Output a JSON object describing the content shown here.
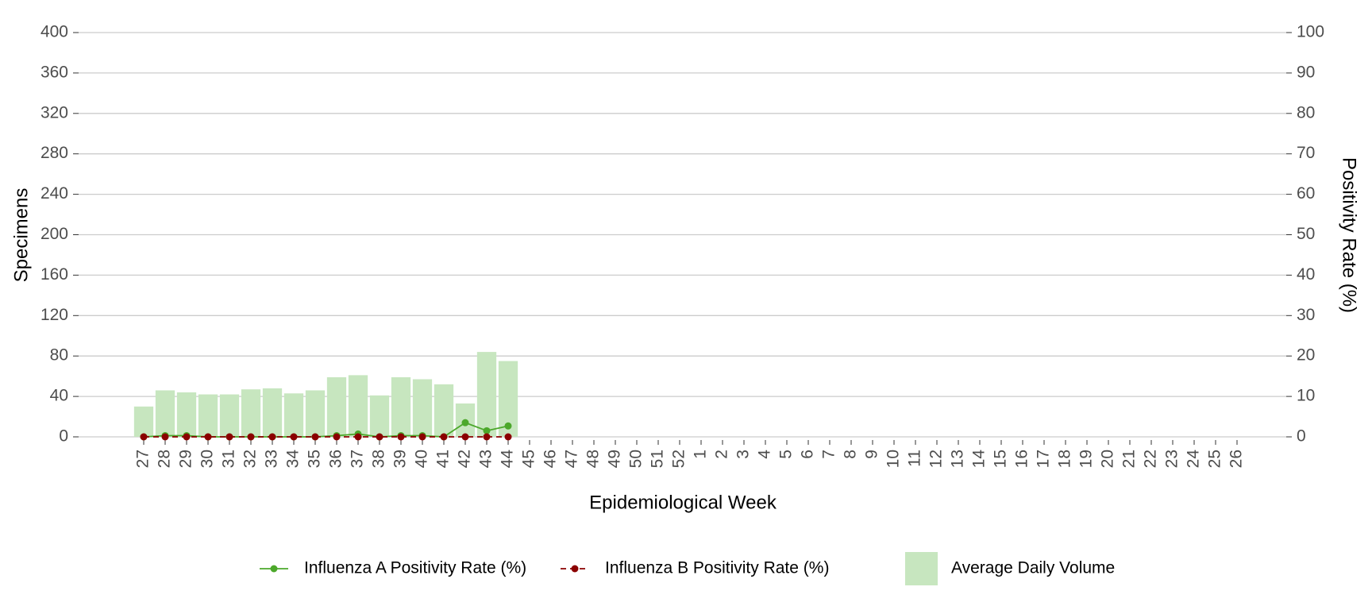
{
  "chart_data": {
    "type": "bar-line",
    "x_label": "Epidemiological Week",
    "y_label": "Specimens",
    "y2_label": "Positivity Rate (%)",
    "categories": [
      "27",
      "28",
      "29",
      "30",
      "31",
      "32",
      "33",
      "34",
      "35",
      "36",
      "37",
      "38",
      "39",
      "40",
      "41",
      "42",
      "43",
      "44",
      "45",
      "46",
      "47",
      "48",
      "49",
      "50",
      "51",
      "52",
      "1",
      "2",
      "3",
      "4",
      "5",
      "6",
      "7",
      "8",
      "9",
      "10",
      "11",
      "12",
      "13",
      "14",
      "15",
      "16",
      "17",
      "18",
      "19",
      "20",
      "21",
      "22",
      "23",
      "24",
      "25",
      "26"
    ],
    "series": [
      {
        "name": "Average Daily Volume",
        "type": "bar",
        "axis": "y",
        "color": "#c7e6bf",
        "values": [
          30,
          46,
          44,
          42,
          42,
          47,
          48,
          43,
          46,
          59,
          61,
          41,
          59,
          57,
          52,
          33,
          84,
          75,
          null,
          null,
          null,
          null,
          null,
          null,
          null,
          null,
          null,
          null,
          null,
          null,
          null,
          null,
          null,
          null,
          null,
          null,
          null,
          null,
          null,
          null,
          null,
          null,
          null,
          null,
          null,
          null,
          null,
          null,
          null,
          null,
          null,
          null
        ]
      },
      {
        "name": "Influenza A Positivity Rate (%)",
        "type": "line",
        "axis": "y2",
        "color": "#4ca82b",
        "dash": false,
        "values": [
          0,
          0.3,
          0.3,
          0,
          0,
          0,
          0,
          0,
          0,
          0.3,
          0.7,
          0,
          0.3,
          0.3,
          0,
          3.5,
          1.5,
          2.7,
          null,
          null,
          null,
          null,
          null,
          null,
          null,
          null,
          null,
          null,
          null,
          null,
          null,
          null,
          null,
          null,
          null,
          null,
          null,
          null,
          null,
          null,
          null,
          null,
          null,
          null,
          null,
          null,
          null,
          null,
          null,
          null,
          null,
          null
        ]
      },
      {
        "name": "Influenza B Positivity Rate (%)",
        "type": "line",
        "axis": "y2",
        "color": "#8b0000",
        "dash": true,
        "values": [
          0,
          0,
          0,
          0,
          0,
          0,
          0,
          0,
          0,
          0,
          0,
          0,
          0,
          0,
          0,
          0,
          0,
          0,
          null,
          null,
          null,
          null,
          null,
          null,
          null,
          null,
          null,
          null,
          null,
          null,
          null,
          null,
          null,
          null,
          null,
          null,
          null,
          null,
          null,
          null,
          null,
          null,
          null,
          null,
          null,
          null,
          null,
          null,
          null,
          null,
          null,
          null
        ]
      }
    ],
    "ylim": [
      0,
      400
    ],
    "yticks": [
      0,
      40,
      80,
      120,
      160,
      200,
      240,
      280,
      320,
      360,
      400
    ],
    "y2lim": [
      0,
      100
    ],
    "y2ticks": [
      0,
      10,
      20,
      30,
      40,
      50,
      60,
      70,
      80,
      90,
      100
    ],
    "grid": true,
    "legend": "bottom"
  }
}
